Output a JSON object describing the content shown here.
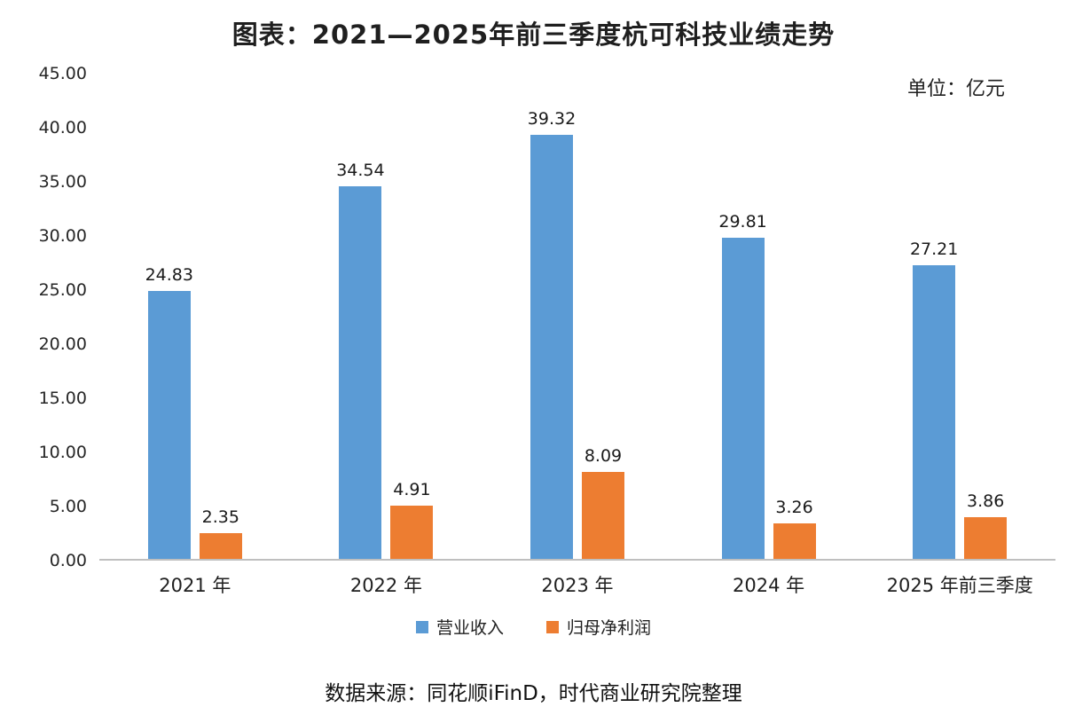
{
  "title": "图表：2021—2025年前三季度杭可科技业绩走势",
  "unit_label": "单位：亿元",
  "source": "数据来源：同花顺iFinD，时代商业研究院整理",
  "chart_data": {
    "type": "bar",
    "categories": [
      "2021 年",
      "2022 年",
      "2023 年",
      "2024 年",
      "2025 年前三季度"
    ],
    "series": [
      {
        "key": "revenue",
        "name": "营业收入",
        "color": "#5B9BD5",
        "values": [
          24.83,
          34.54,
          39.32,
          29.81,
          27.21
        ]
      },
      {
        "key": "net-profit",
        "name": "归母净利润",
        "color": "#ED7D31",
        "values": [
          2.35,
          4.91,
          8.09,
          3.26,
          3.86
        ]
      }
    ],
    "ylim": [
      0,
      45
    ],
    "ytick_step": 5,
    "yticks": [
      "45.00",
      "40.00",
      "35.00",
      "30.00",
      "25.00",
      "20.00",
      "15.00",
      "10.00",
      "5.00",
      "0.00"
    ],
    "grid": false,
    "legend_position": "bottom",
    "value_labels": true
  }
}
